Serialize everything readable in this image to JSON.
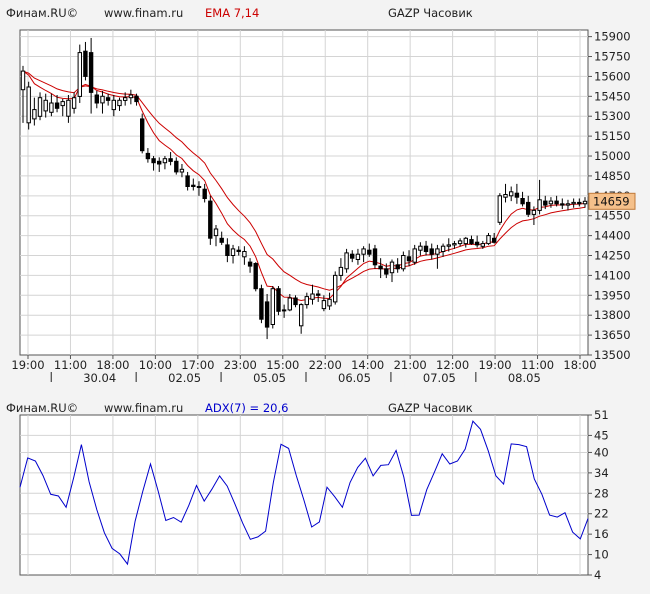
{
  "price_panel": {
    "source": "Финам.RU©",
    "url": "www.finam.ru",
    "indicator": "EMA 7,14",
    "title": "GAZP Часовик",
    "last_price": "14659"
  },
  "adx_panel": {
    "source": "Финам.RU©",
    "url": "www.finam.ru",
    "indicator": "ADX(7) = 20,6",
    "title": "GAZP Часовик"
  },
  "colors": {
    "panel_bg": "#ffffff",
    "page_bg": "#f3f3f3",
    "candle": "#000000",
    "ema": "#cc0000",
    "adx": "#0000cc",
    "price_box": "#f5c08a",
    "grid": "#d4d4d4"
  },
  "chart_data": [
    {
      "type": "candlestick",
      "title": "GAZP Часовик",
      "ylim": [
        13500,
        15950
      ],
      "yticks": [
        15900,
        15750,
        15600,
        15450,
        15300,
        15150,
        15000,
        14850,
        14700,
        14550,
        14400,
        14250,
        14100,
        13950,
        13800,
        13650,
        13500
      ],
      "xtick_labels_top": [
        "19:00",
        "11:00",
        "18:00",
        "10:00",
        "17:00",
        "23:00",
        "15:00",
        "22:00",
        "14:00",
        "21:00",
        "12:00",
        "19:00",
        "11:00",
        "18:00"
      ],
      "xtick_labels_bottom": [
        "30.04",
        "02.05",
        "05.05",
        "06.05",
        "07.05",
        "08.05"
      ],
      "grid": true,
      "candles": [
        {
          "o": 15500,
          "h": 15680,
          "l": 15250,
          "c": 15640
        },
        {
          "o": 15250,
          "h": 15560,
          "l": 15200,
          "c": 15520
        },
        {
          "o": 15280,
          "h": 15440,
          "l": 15230,
          "c": 15350
        },
        {
          "o": 15300,
          "h": 15480,
          "l": 15270,
          "c": 15440
        },
        {
          "o": 15340,
          "h": 15470,
          "l": 15290,
          "c": 15420
        },
        {
          "o": 15330,
          "h": 15470,
          "l": 15300,
          "c": 15400
        },
        {
          "o": 15400,
          "h": 15460,
          "l": 15330,
          "c": 15360
        },
        {
          "o": 15380,
          "h": 15430,
          "l": 15300,
          "c": 15410
        },
        {
          "o": 15300,
          "h": 15460,
          "l": 15250,
          "c": 15420
        },
        {
          "o": 15360,
          "h": 15480,
          "l": 15320,
          "c": 15440
        },
        {
          "o": 15450,
          "h": 15840,
          "l": 15400,
          "c": 15780
        },
        {
          "o": 15790,
          "h": 15860,
          "l": 15570,
          "c": 15600
        },
        {
          "o": 15780,
          "h": 15890,
          "l": 15320,
          "c": 15480
        },
        {
          "o": 15460,
          "h": 15490,
          "l": 15360,
          "c": 15400
        },
        {
          "o": 15400,
          "h": 15490,
          "l": 15320,
          "c": 15450
        },
        {
          "o": 15440,
          "h": 15470,
          "l": 15380,
          "c": 15420
        },
        {
          "o": 15350,
          "h": 15460,
          "l": 15300,
          "c": 15420
        },
        {
          "o": 15380,
          "h": 15440,
          "l": 15340,
          "c": 15420
        },
        {
          "o": 15420,
          "h": 15480,
          "l": 15380,
          "c": 15440
        },
        {
          "o": 15440,
          "h": 15500,
          "l": 15390,
          "c": 15460
        },
        {
          "o": 15450,
          "h": 15470,
          "l": 15380,
          "c": 15410
        },
        {
          "o": 15280,
          "h": 15320,
          "l": 15020,
          "c": 15040
        },
        {
          "o": 15020,
          "h": 15060,
          "l": 14950,
          "c": 14980
        },
        {
          "o": 14980,
          "h": 15000,
          "l": 14890,
          "c": 14950
        },
        {
          "o": 14960,
          "h": 14990,
          "l": 14880,
          "c": 14940
        },
        {
          "o": 14950,
          "h": 15000,
          "l": 14900,
          "c": 14980
        },
        {
          "o": 14980,
          "h": 15030,
          "l": 14930,
          "c": 14960
        },
        {
          "o": 14960,
          "h": 14990,
          "l": 14860,
          "c": 14880
        },
        {
          "o": 14880,
          "h": 14940,
          "l": 14840,
          "c": 14900
        },
        {
          "o": 14850,
          "h": 14880,
          "l": 14740,
          "c": 14770
        },
        {
          "o": 14780,
          "h": 14830,
          "l": 14740,
          "c": 14770
        },
        {
          "o": 14770,
          "h": 14810,
          "l": 14700,
          "c": 14770
        },
        {
          "o": 14750,
          "h": 14790,
          "l": 14650,
          "c": 14680
        },
        {
          "o": 14660,
          "h": 14700,
          "l": 14330,
          "c": 14380
        },
        {
          "o": 14400,
          "h": 14480,
          "l": 14320,
          "c": 14450
        },
        {
          "o": 14380,
          "h": 14430,
          "l": 14330,
          "c": 14350
        },
        {
          "o": 14330,
          "h": 14380,
          "l": 14200,
          "c": 14250
        },
        {
          "o": 14250,
          "h": 14330,
          "l": 14190,
          "c": 14300
        },
        {
          "o": 14290,
          "h": 14320,
          "l": 14250,
          "c": 14280
        },
        {
          "o": 14240,
          "h": 14320,
          "l": 14180,
          "c": 14280
        },
        {
          "o": 14200,
          "h": 14230,
          "l": 14120,
          "c": 14170
        },
        {
          "o": 14190,
          "h": 14200,
          "l": 13980,
          "c": 14000
        },
        {
          "o": 14000,
          "h": 14030,
          "l": 13740,
          "c": 13770
        },
        {
          "o": 13900,
          "h": 13960,
          "l": 13620,
          "c": 13710
        },
        {
          "o": 13730,
          "h": 14020,
          "l": 13700,
          "c": 14000
        },
        {
          "o": 14000,
          "h": 14020,
          "l": 13800,
          "c": 13830
        },
        {
          "o": 13840,
          "h": 13880,
          "l": 13780,
          "c": 13840
        },
        {
          "o": 13840,
          "h": 13960,
          "l": 13830,
          "c": 13930
        },
        {
          "o": 13930,
          "h": 13950,
          "l": 13860,
          "c": 13880
        },
        {
          "o": 13720,
          "h": 13890,
          "l": 13660,
          "c": 13880
        },
        {
          "o": 13880,
          "h": 13970,
          "l": 13850,
          "c": 13940
        },
        {
          "o": 13920,
          "h": 14030,
          "l": 13880,
          "c": 13960
        },
        {
          "o": 13960,
          "h": 13990,
          "l": 13900,
          "c": 13950
        },
        {
          "o": 13850,
          "h": 13950,
          "l": 13830,
          "c": 13910
        },
        {
          "o": 13870,
          "h": 13970,
          "l": 13840,
          "c": 13920
        },
        {
          "o": 13900,
          "h": 14130,
          "l": 13880,
          "c": 14100
        },
        {
          "o": 14100,
          "h": 14230,
          "l": 14060,
          "c": 14160
        },
        {
          "o": 14150,
          "h": 14300,
          "l": 14120,
          "c": 14270
        },
        {
          "o": 14260,
          "h": 14290,
          "l": 14200,
          "c": 14230
        },
        {
          "o": 14220,
          "h": 14300,
          "l": 14180,
          "c": 14260
        },
        {
          "o": 14260,
          "h": 14320,
          "l": 14200,
          "c": 14300
        },
        {
          "o": 14290,
          "h": 14340,
          "l": 14240,
          "c": 14260
        },
        {
          "o": 14300,
          "h": 14330,
          "l": 14150,
          "c": 14180
        },
        {
          "o": 14170,
          "h": 14230,
          "l": 14080,
          "c": 14150
        },
        {
          "o": 14150,
          "h": 14190,
          "l": 14080,
          "c": 14110
        },
        {
          "o": 14120,
          "h": 14220,
          "l": 14050,
          "c": 14200
        },
        {
          "o": 14180,
          "h": 14230,
          "l": 14120,
          "c": 14150
        },
        {
          "o": 14150,
          "h": 14280,
          "l": 14130,
          "c": 14250
        },
        {
          "o": 14240,
          "h": 14290,
          "l": 14170,
          "c": 14210
        },
        {
          "o": 14200,
          "h": 14330,
          "l": 14180,
          "c": 14300
        },
        {
          "o": 14290,
          "h": 14350,
          "l": 14250,
          "c": 14320
        },
        {
          "o": 14320,
          "h": 14360,
          "l": 14250,
          "c": 14280
        },
        {
          "o": 14300,
          "h": 14340,
          "l": 14220,
          "c": 14260
        },
        {
          "o": 14260,
          "h": 14330,
          "l": 14150,
          "c": 14300
        },
        {
          "o": 14280,
          "h": 14340,
          "l": 14240,
          "c": 14320
        },
        {
          "o": 14320,
          "h": 14380,
          "l": 14280,
          "c": 14330
        },
        {
          "o": 14330,
          "h": 14360,
          "l": 14300,
          "c": 14340
        },
        {
          "o": 14340,
          "h": 14380,
          "l": 14320,
          "c": 14360
        },
        {
          "o": 14340,
          "h": 14390,
          "l": 14310,
          "c": 14380
        },
        {
          "o": 14370,
          "h": 14400,
          "l": 14330,
          "c": 14340
        },
        {
          "o": 14350,
          "h": 14400,
          "l": 14310,
          "c": 14330
        },
        {
          "o": 14320,
          "h": 14360,
          "l": 14300,
          "c": 14340
        },
        {
          "o": 14340,
          "h": 14420,
          "l": 14330,
          "c": 14400
        },
        {
          "o": 14380,
          "h": 14420,
          "l": 14340,
          "c": 14350
        },
        {
          "o": 14500,
          "h": 14720,
          "l": 14480,
          "c": 14700
        },
        {
          "o": 14690,
          "h": 14790,
          "l": 14650,
          "c": 14710
        },
        {
          "o": 14700,
          "h": 14770,
          "l": 14660,
          "c": 14730
        },
        {
          "o": 14720,
          "h": 14790,
          "l": 14640,
          "c": 14690
        },
        {
          "o": 14680,
          "h": 14730,
          "l": 14620,
          "c": 14640
        },
        {
          "o": 14650,
          "h": 14700,
          "l": 14540,
          "c": 14560
        },
        {
          "o": 14560,
          "h": 14620,
          "l": 14480,
          "c": 14590
        },
        {
          "o": 14590,
          "h": 14820,
          "l": 14560,
          "c": 14670
        },
        {
          "o": 14660,
          "h": 14700,
          "l": 14600,
          "c": 14630
        },
        {
          "o": 14640,
          "h": 14690,
          "l": 14610,
          "c": 14660
        },
        {
          "o": 14660,
          "h": 14700,
          "l": 14620,
          "c": 14640
        },
        {
          "o": 14640,
          "h": 14680,
          "l": 14600,
          "c": 14630
        },
        {
          "o": 14630,
          "h": 14670,
          "l": 14590,
          "c": 14640
        },
        {
          "o": 14640,
          "h": 14680,
          "l": 14610,
          "c": 14650
        },
        {
          "o": 14650,
          "h": 14680,
          "l": 14620,
          "c": 14640
        },
        {
          "o": 14640,
          "h": 14690,
          "l": 14610,
          "c": 14659
        }
      ],
      "series": [
        {
          "name": "EMA 7",
          "period": 7
        },
        {
          "name": "EMA 14",
          "period": 14
        }
      ]
    },
    {
      "type": "line",
      "title": "GAZP Часовик",
      "ylim": [
        4,
        51
      ],
      "yticks": [
        51,
        45,
        40,
        34,
        28,
        22,
        16,
        10,
        4
      ],
      "series": [
        {
          "name": "ADX(7)",
          "values": [
            29.8,
            38.4,
            37.5,
            33.2,
            27.7,
            27.2,
            23.9,
            32.6,
            42.3,
            31.4,
            23.2,
            16.4,
            11.8,
            10.2,
            7.2,
            19.8,
            28.6,
            36.6,
            28.6,
            20.0,
            20.9,
            19.5,
            24.5,
            30.3,
            25.7,
            29.2,
            33.1,
            30.1,
            24.9,
            19.3,
            14.5,
            15.2,
            16.9,
            31.1,
            42.4,
            41.2,
            33.2,
            25.9,
            18.1,
            19.6,
            29.8,
            27.0,
            23.9,
            31.2,
            35.6,
            38.3,
            33.1,
            36.2,
            36.4,
            40.6,
            32.8,
            21.5,
            21.6,
            29.1,
            34.3,
            39.6,
            36.6,
            37.5,
            41.0,
            49.2,
            46.8,
            40.5,
            33.1,
            30.7,
            42.5,
            42.3,
            41.7,
            32.2,
            27.7,
            21.6,
            21.0,
            22.3,
            16.6,
            14.6,
            20.6
          ]
        }
      ]
    }
  ]
}
